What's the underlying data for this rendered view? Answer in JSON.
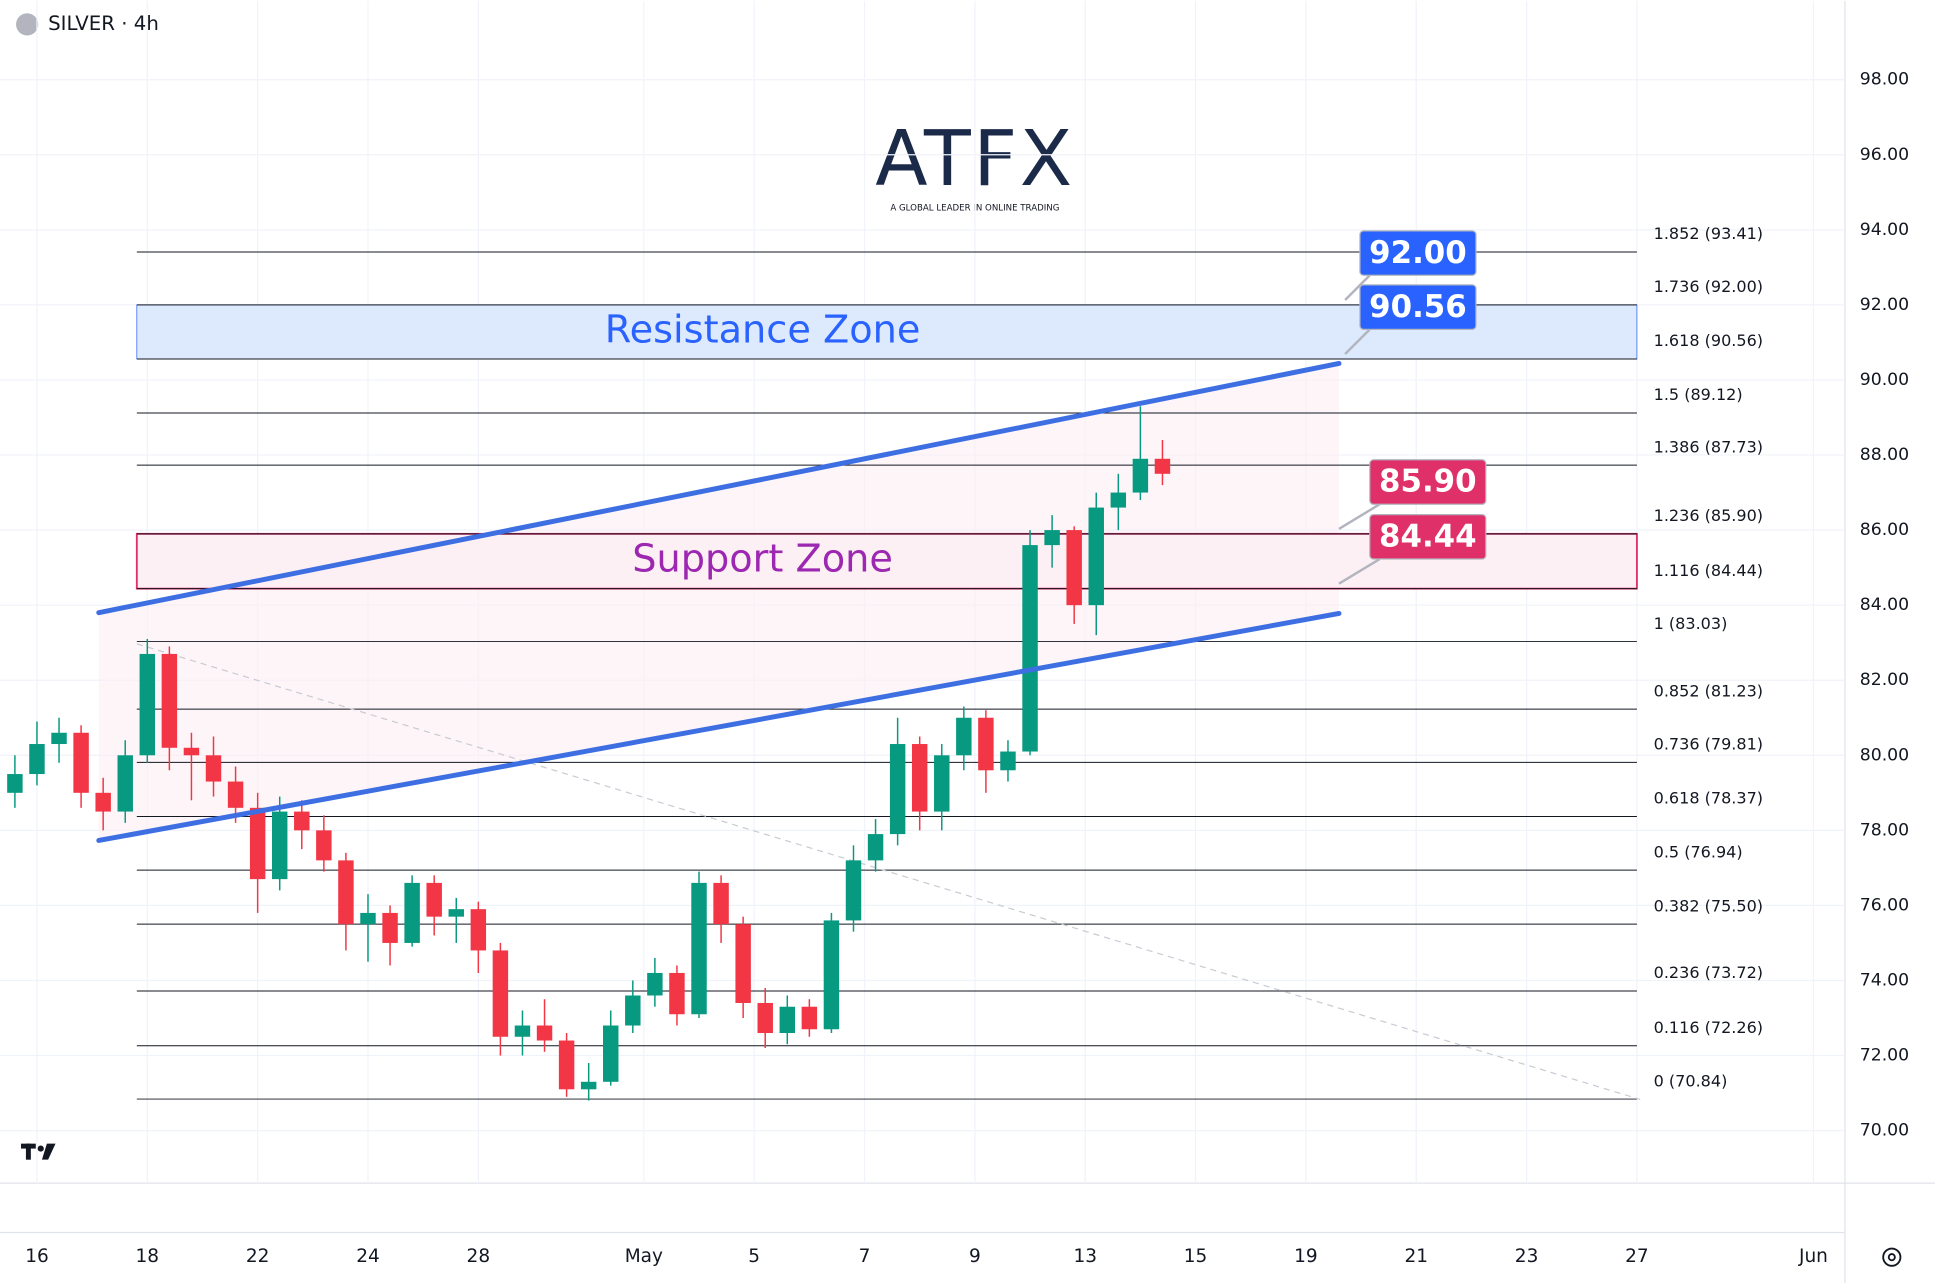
{
  "chart_data": {
    "type": "candlestick",
    "title": "SILVER · 4h",
    "watermark": {
      "name": "ATFX",
      "tagline": "A GLOBAL LEADER IN ONLINE TRADING"
    },
    "up_color": "#089981",
    "down_color": "#f23645",
    "xlim": [
      -0.67,
      32.77
    ],
    "xticks": [
      {
        "value": 0,
        "label": "16"
      },
      {
        "value": 2,
        "label": "18"
      },
      {
        "value": 4,
        "label": "22"
      },
      {
        "value": 6,
        "label": "24"
      },
      {
        "value": 8,
        "label": "28"
      },
      {
        "value": 11,
        "label": "May"
      },
      {
        "value": 13,
        "label": "5"
      },
      {
        "value": 15,
        "label": "7"
      },
      {
        "value": 17,
        "label": "9"
      },
      {
        "value": 19,
        "label": "13"
      },
      {
        "value": 21,
        "label": "15"
      },
      {
        "value": 23,
        "label": "19"
      },
      {
        "value": 25,
        "label": "21"
      },
      {
        "value": 27,
        "label": "23"
      },
      {
        "value": 29,
        "label": "27"
      },
      {
        "value": 32.2,
        "label": "Jun"
      }
    ],
    "ylim": [
      68.6,
      100.1
    ],
    "yticks": [
      {
        "value": 70,
        "label": "70.00"
      },
      {
        "value": 72,
        "label": "72.00"
      },
      {
        "value": 74,
        "label": "74.00"
      },
      {
        "value": 76,
        "label": "76.00"
      },
      {
        "value": 78,
        "label": "78.00"
      },
      {
        "value": 80,
        "label": "80.00"
      },
      {
        "value": 82,
        "label": "82.00"
      },
      {
        "value": 84,
        "label": "84.00"
      },
      {
        "value": 86,
        "label": "86.00"
      },
      {
        "value": 88,
        "label": "88.00"
      },
      {
        "value": 90,
        "label": "90.00"
      },
      {
        "value": 92,
        "label": "92.00"
      },
      {
        "value": 94,
        "label": "94.00"
      },
      {
        "value": 96,
        "label": "96.00"
      },
      {
        "value": 98,
        "label": "98.00"
      }
    ],
    "candles": {
      "x": [
        -0.4,
        0,
        0.4,
        0.8,
        1.2,
        1.6,
        2,
        2.4,
        2.8,
        3.2,
        3.6,
        4,
        4.4,
        4.8,
        5.2,
        5.6,
        6,
        6.4,
        6.8,
        7.2,
        7.6,
        8,
        8.4,
        8.8,
        9.2,
        9.6,
        10,
        10.4,
        10.8,
        11.2,
        11.6,
        12,
        12.4,
        12.8,
        13.2,
        13.6,
        14,
        14.4,
        14.8,
        15.2,
        15.6,
        16,
        16.4,
        16.8,
        17.2,
        17.6,
        18,
        18.4,
        18.8,
        19.2,
        19.6,
        20,
        20.4
      ],
      "open": [
        79.0,
        79.5,
        80.3,
        80.6,
        79.0,
        78.5,
        80.0,
        82.7,
        80.2,
        80.0,
        79.3,
        78.6,
        76.7,
        78.5,
        78.0,
        77.2,
        75.5,
        75.8,
        75.0,
        76.6,
        75.7,
        75.9,
        74.8,
        72.5,
        72.8,
        72.4,
        71.1,
        71.3,
        72.8,
        73.6,
        74.2,
        73.1,
        76.6,
        75.5,
        73.4,
        72.6,
        73.3,
        72.7,
        75.6,
        77.2,
        77.9,
        80.3,
        78.5,
        80.0,
        81.0,
        79.6,
        80.1,
        85.6,
        86.0,
        84.0,
        86.6,
        87.0,
        87.9
      ],
      "high": [
        80.0,
        80.9,
        81.0,
        80.8,
        79.4,
        80.4,
        83.1,
        82.9,
        80.6,
        80.5,
        79.7,
        79.0,
        78.9,
        78.8,
        78.4,
        77.4,
        76.3,
        76.0,
        76.8,
        76.8,
        76.2,
        76.1,
        75.0,
        73.2,
        73.5,
        72.6,
        71.8,
        73.2,
        74.0,
        74.6,
        74.4,
        76.9,
        76.8,
        75.7,
        73.8,
        73.6,
        73.5,
        75.8,
        77.6,
        78.3,
        81.0,
        80.5,
        80.3,
        81.3,
        81.2,
        80.4,
        86.0,
        86.4,
        86.1,
        87.0,
        87.5,
        89.3,
        88.4
      ],
      "low": [
        78.6,
        79.2,
        79.8,
        78.6,
        78.0,
        78.2,
        79.8,
        79.6,
        78.8,
        78.9,
        78.2,
        75.8,
        76.4,
        77.5,
        76.9,
        74.8,
        74.5,
        74.4,
        74.9,
        75.2,
        75.0,
        74.2,
        72.0,
        72.0,
        72.1,
        70.9,
        70.8,
        71.2,
        72.6,
        73.3,
        72.8,
        73.0,
        75.0,
        73.0,
        72.2,
        72.3,
        72.5,
        72.6,
        75.3,
        76.9,
        77.6,
        78.0,
        78.0,
        79.6,
        79.0,
        79.3,
        80.0,
        85.0,
        83.5,
        83.2,
        86.0,
        86.8,
        87.2
      ],
      "close": [
        79.5,
        80.3,
        80.6,
        79.0,
        78.5,
        80.0,
        82.7,
        80.2,
        80.0,
        79.3,
        78.6,
        76.7,
        78.5,
        78.0,
        77.2,
        75.5,
        75.8,
        75.0,
        76.6,
        75.7,
        75.9,
        74.8,
        72.5,
        72.8,
        72.4,
        71.1,
        71.3,
        72.8,
        73.6,
        74.2,
        73.1,
        76.6,
        75.5,
        73.4,
        72.6,
        73.3,
        72.7,
        75.6,
        77.2,
        77.9,
        80.3,
        78.5,
        80.0,
        81.0,
        79.6,
        80.1,
        85.6,
        86.0,
        84.0,
        86.6,
        87.0,
        87.9,
        87.5
      ]
    },
    "fib_start": 1.81,
    "fib_end": 29.0,
    "fib_levels": [
      {
        "value": 93.41,
        "label": "1.852 (93.41)"
      },
      {
        "value": 92.0,
        "label": "1.736 (92.00)"
      },
      {
        "value": 90.56,
        "label": "1.618 (90.56)"
      },
      {
        "value": 89.12,
        "label": "1.5 (89.12)"
      },
      {
        "value": 87.73,
        "label": "1.386 (87.73)"
      },
      {
        "value": 85.9,
        "label": "1.236 (85.90)"
      },
      {
        "value": 84.44,
        "label": "1.116 (84.44)"
      },
      {
        "value": 83.03,
        "label": "1 (83.03)"
      },
      {
        "value": 81.23,
        "label": "0.852 (81.23)"
      },
      {
        "value": 79.81,
        "label": "0.736 (79.81)"
      },
      {
        "value": 78.37,
        "label": "0.618 (78.37)"
      },
      {
        "value": 76.94,
        "label": "0.5 (76.94)"
      },
      {
        "value": 75.5,
        "label": "0.382 (75.50)"
      },
      {
        "value": 73.72,
        "label": "0.236 (73.72)"
      },
      {
        "value": 72.26,
        "label": "0.116 (72.26)"
      },
      {
        "value": 70.84,
        "label": "0 (70.84)"
      }
    ],
    "zones": [
      {
        "name": "Resistance Zone",
        "low": 90.56,
        "high": 92.0,
        "low_label": "90.56",
        "high_label": "92.00",
        "color": "#2962ff",
        "fill": "#ddeafd"
      },
      {
        "name": "Support Zone",
        "low": 84.44,
        "high": 85.9,
        "low_label": "84.44",
        "high_label": "85.90",
        "color": "#e0306a",
        "fill": "#fdf0f4"
      }
    ],
    "trendlines": [
      {
        "x": [
          1.12,
          23.6
        ],
        "y": [
          83.8,
          90.44
        ],
        "color": "#3d6fe3"
      },
      {
        "x": [
          1.12,
          23.6
        ],
        "y": [
          77.73,
          83.78
        ],
        "color": "#3d6fe3"
      }
    ],
    "projection": {
      "x": [
        1.81,
        29.06
      ],
      "y": [
        82.97,
        70.83
      ]
    }
  }
}
